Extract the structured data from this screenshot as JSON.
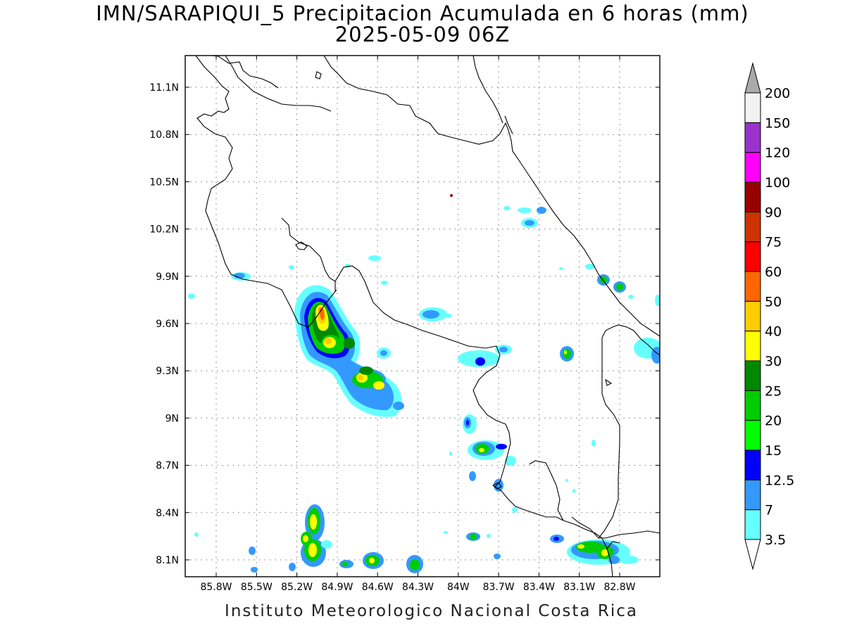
{
  "map": {
    "title_line1": "IMN/SARAPIQUI_5 Precipitacion Acumulada en 6 horas (mm)",
    "title_line2": "2025-05-09 06Z",
    "footer": "Instituto Meteorologico Nacional Costa Rica",
    "lon_labels": [
      "85.8W",
      "85.5W",
      "85.2W",
      "84.9W",
      "84.6W",
      "84.3W",
      "84W",
      "83.7W",
      "83.4W",
      "83.1W",
      "82.8W"
    ],
    "lat_labels": [
      "11.1N",
      "10.8N",
      "10.5N",
      "10.2N",
      "9.9N",
      "9.6N",
      "9.3N",
      "9N",
      "8.7N",
      "8.4N",
      "8.1N"
    ],
    "colorbar": {
      "levels": [
        "3.5",
        "7",
        "12.5",
        "15",
        "20",
        "25",
        "30",
        "40",
        "50",
        "60",
        "75",
        "90",
        "100",
        "120",
        "150",
        "200"
      ],
      "colors": [
        "#66ffff",
        "#3399ff",
        "#0000ff",
        "#00ff00",
        "#00cc00",
        "#008800",
        "#ffff00",
        "#ffcc00",
        "#ff6600",
        "#ff0000",
        "#cc3300",
        "#990000",
        "#ff00ff",
        "#9933cc",
        "#f2f2f2",
        "#aaaaaa"
      ]
    }
  }
}
